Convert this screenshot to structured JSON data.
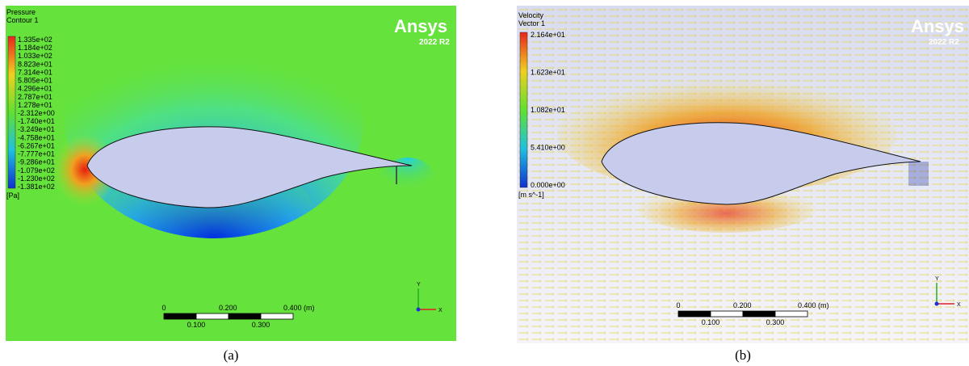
{
  "panels": [
    {
      "legend": {
        "title": [
          "Pressure",
          "Contour 1"
        ],
        "labels": [
          "1.335e+02",
          "1.184e+02",
          "1.033e+02",
          "8.823e+01",
          "7.314e+01",
          "5.805e+01",
          "4.296e+01",
          "2.787e+01",
          "1.278e+01",
          "-2.312e+00",
          "-1.740e+01",
          "-3.249e+01",
          "-4.758e+01",
          "-6.267e+01",
          "-7.777e+01",
          "-9.286e+01",
          "-1.079e+02",
          "-1.230e+02",
          "-1.381e+02"
        ],
        "unit": "[Pa]"
      },
      "brand": {
        "name": "Ansys",
        "version": "2022 R2"
      },
      "scale_bar": {
        "top": [
          "0",
          "0.200",
          "0.400 (m)"
        ],
        "bottom": [
          "0.100",
          "0.300"
        ]
      },
      "axes": {
        "y": "Y",
        "x": "X"
      },
      "caption": "(a)"
    },
    {
      "legend": {
        "title": [
          "Velocity",
          "Vector 1"
        ],
        "labels": [
          "2.164e+01",
          "1.623e+01",
          "1.082e+01",
          "5.410e+00",
          "0.000e+00"
        ],
        "unit": "[m s^-1]"
      },
      "brand": {
        "name": "Ansys",
        "version": "2022 R2"
      },
      "scale_bar": {
        "top": [
          "0",
          "0.200",
          "0.400 (m)"
        ],
        "bottom": [
          "0.100",
          "0.300"
        ]
      },
      "axes": {
        "y": "Y",
        "x": "X"
      },
      "caption": "(b)"
    }
  ]
}
